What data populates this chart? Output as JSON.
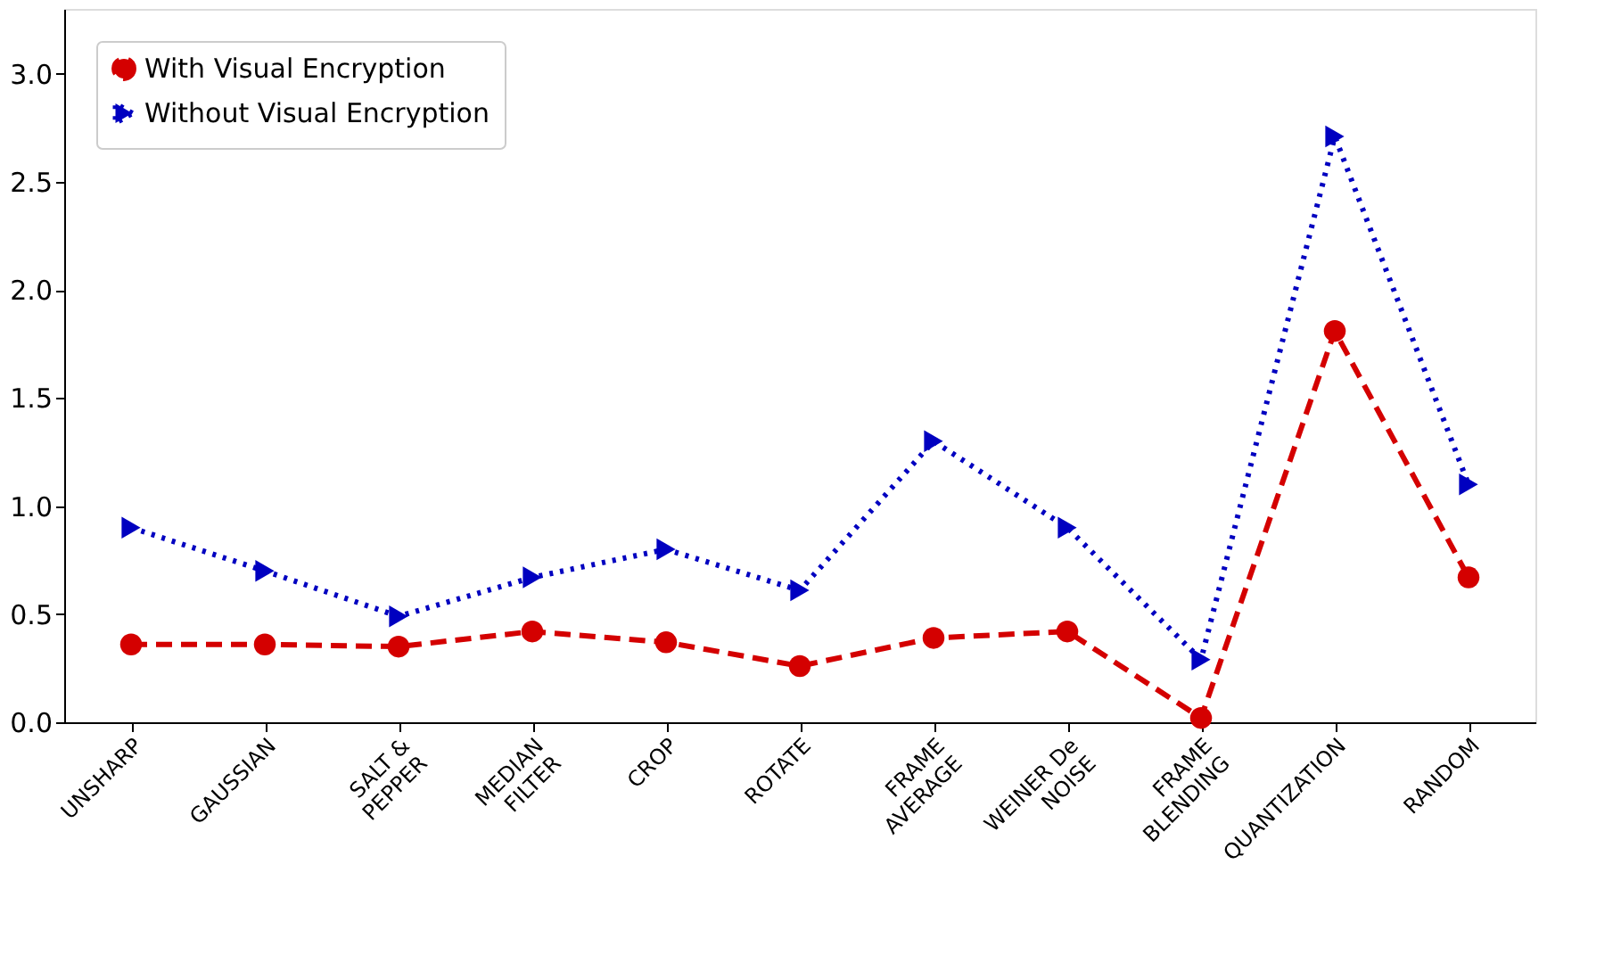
{
  "chart_data": {
    "type": "line",
    "categories": [
      "UNSHARP",
      "GAUSSIAN",
      "SALT &\nPEPPER",
      "MEDIAN\nFILTER",
      "CROP",
      "ROTATE",
      "FRAME\nAVERAGE",
      "WEINER De\nNOISE",
      "FRAME\nBLENDING",
      "QUANTIZATION",
      "RANDOM"
    ],
    "series": [
      {
        "name": "With Visual Encryption",
        "color": "#d40000",
        "marker": "circle",
        "line_style": "dashed",
        "values": [
          0.36,
          0.36,
          0.35,
          0.42,
          0.37,
          0.26,
          0.39,
          0.42,
          0.02,
          1.81,
          0.67
        ]
      },
      {
        "name": "Without Visual Encryption",
        "color": "#0000c0",
        "marker": "triangle",
        "line_style": "dotted",
        "values": [
          0.9,
          0.7,
          0.49,
          0.67,
          0.8,
          0.61,
          1.3,
          0.9,
          0.29,
          2.71,
          1.1
        ]
      }
    ],
    "ylim": [
      0,
      3.3
    ],
    "yticks": [
      {
        "value": 0,
        "label": "0.0"
      },
      0.5,
      {
        "value": 1,
        "label": "1.0"
      },
      1.5,
      {
        "value": 2,
        "label": "2.0"
      },
      2.5,
      {
        "value": 3,
        "label": "3.0"
      }
    ],
    "grid": false,
    "legend": "top left"
  }
}
